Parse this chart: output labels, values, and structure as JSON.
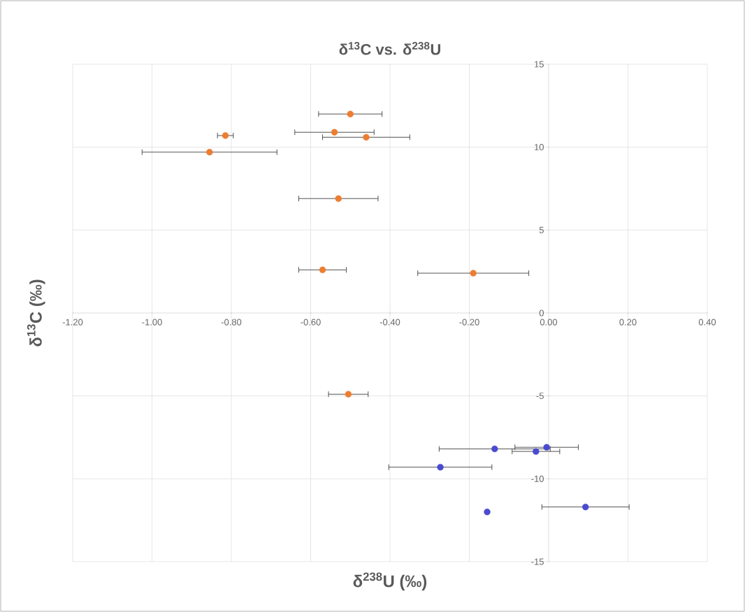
{
  "chart_data": {
    "type": "scatter",
    "title": "δ$^{13}$C vs. δ$^{238}$U",
    "xlabel": "δ$^{238}$U (‰)",
    "ylabel": "δ$^{13}$C (‰)",
    "xlim": [
      -1.2,
      0.4
    ],
    "ylim": [
      -15,
      15
    ],
    "xticks": [
      {
        "value": -1.2,
        "label": "-1.20"
      },
      {
        "value": -1.0,
        "label": "-1.00"
      },
      {
        "value": -0.8,
        "label": "-0.80"
      },
      {
        "value": -0.6,
        "label": "-0.60"
      },
      {
        "value": -0.4,
        "label": "-0.40"
      },
      {
        "value": -0.2,
        "label": "-0.20"
      },
      {
        "value": 0,
        "label": "0.00"
      },
      {
        "value": 0.2,
        "label": "0.20"
      },
      {
        "value": 0.4,
        "label": "0.40"
      }
    ],
    "yticks": [
      -15,
      -10,
      -5,
      0,
      5,
      10,
      15
    ],
    "grid": true,
    "marker": "circle",
    "series": [
      {
        "color": "#ed7d31",
        "x": [
          -0.5,
          -0.54,
          -0.46,
          -0.815,
          -0.855,
          -0.53,
          -0.57,
          -0.19,
          -0.505
        ],
        "values": [
          12.0,
          10.9,
          10.6,
          10.7,
          9.7,
          6.9,
          2.6,
          2.4,
          -4.9
        ],
        "xerrors": [
          0.08,
          0.1,
          0.11,
          0.02,
          0.17,
          0.1,
          0.06,
          0.14,
          0.05
        ]
      },
      {
        "color": "#4a4ad0",
        "x": [
          -0.136,
          -0.032,
          -0.005,
          -0.273,
          0.093,
          -0.155
        ],
        "values": [
          -8.2,
          -8.35,
          -8.1,
          -9.3,
          -11.7,
          -12.0
        ],
        "xerrors": [
          0.14,
          0.06,
          0.08,
          0.13,
          0.11,
          null
        ]
      }
    ]
  }
}
